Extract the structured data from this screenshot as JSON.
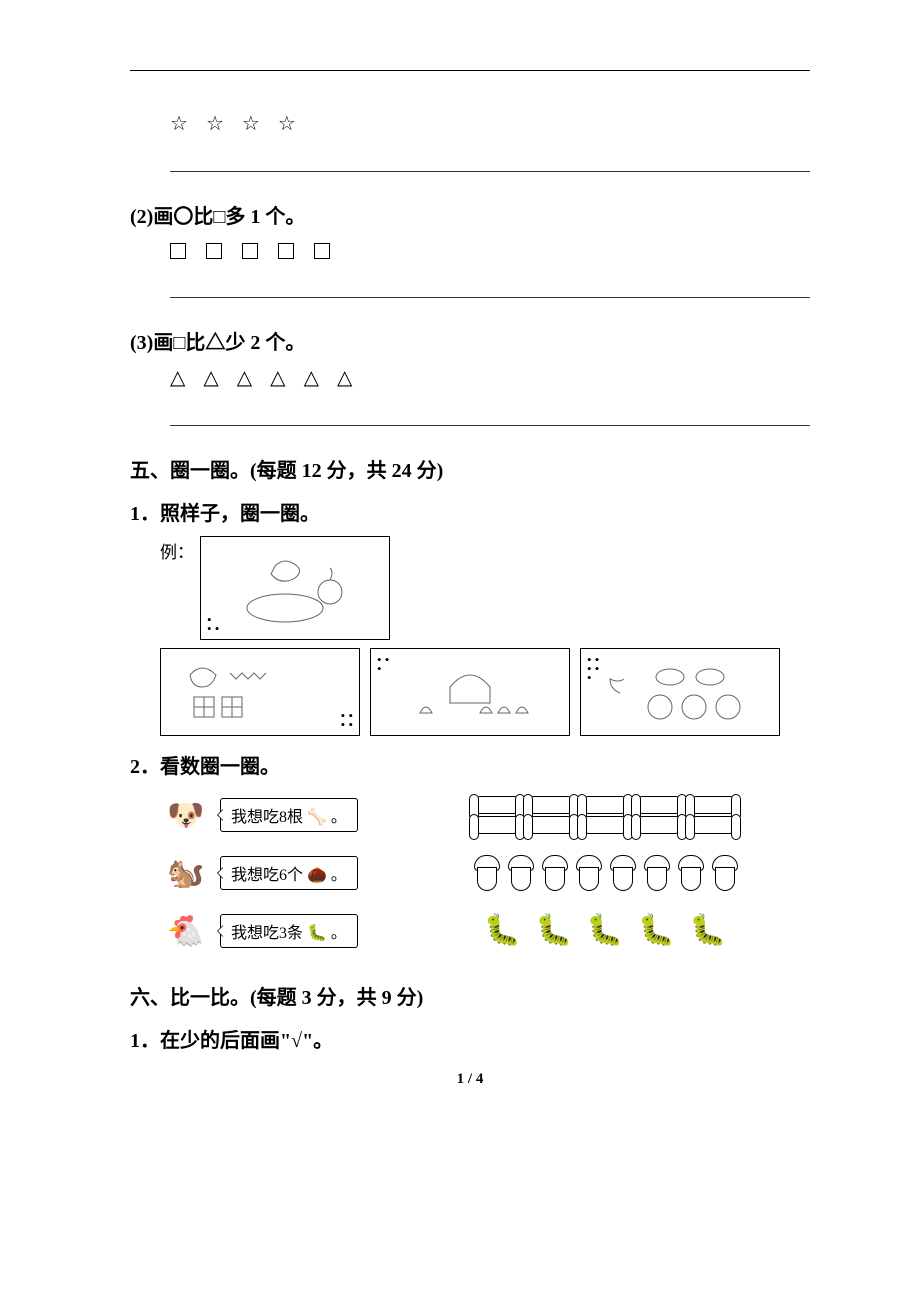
{
  "shapes": {
    "stars_count": 4,
    "star_glyph": "☆",
    "squares_count": 5,
    "triangles_count": 6,
    "triangle_glyph": "△"
  },
  "q2": {
    "label": "(2)画〇比□多 1 个。"
  },
  "q3": {
    "label": "(3)画□比△少 2 个。"
  },
  "sec5": {
    "heading": "五、圈一圈。(每题 12 分，共 24 分)",
    "item1": "1．照样子，圈一圈。",
    "example_label": "例：",
    "example_dots": "•\n• •",
    "cellB_dots": "• •\n•",
    "cellA_dots": "• •\n• •",
    "cellC_dots": "• •\n• •\n•",
    "item2": "2．看数圈一圈。",
    "row1_text": "我想吃8根 🦴 。",
    "row2_text": "我想吃6个 🌰 。",
    "row3_text": "我想吃3条 🐛 。",
    "bones_per_row": 5,
    "bone_rows": 2,
    "acorns": 8,
    "worms": 5,
    "worm_glyph": "🐛",
    "animal1": "🐶",
    "animal2": "🐿️",
    "animal3": "🐔"
  },
  "sec6": {
    "heading": "六、比一比。(每题 3 分，共 9 分)",
    "item1": "1．在少的后面画\"√\"。"
  },
  "footer": {
    "page_current": "1",
    "page_sep": " / ",
    "page_total": "4"
  }
}
